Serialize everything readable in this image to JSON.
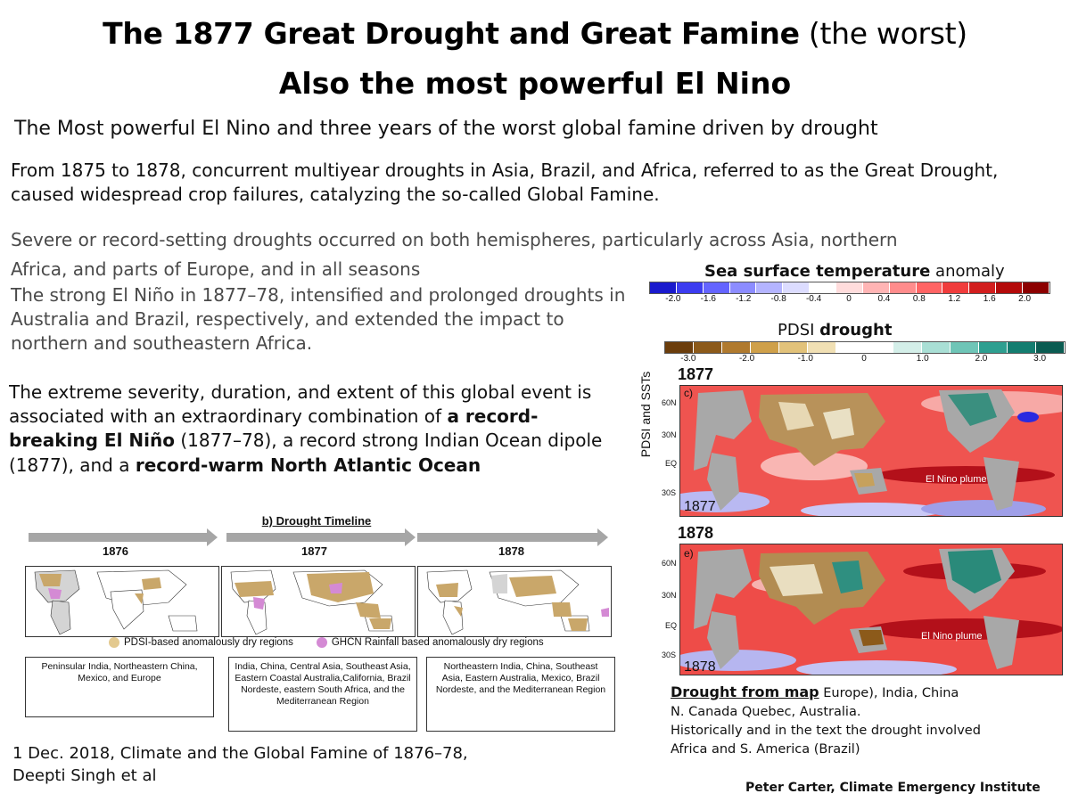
{
  "title": {
    "line1_bold": "The 1877  Great Drought and Great Famine",
    "line1_light": " (the worst)",
    "line2": "Also the most powerful El Nino"
  },
  "subtitle": "The Most powerful El Nino and three years of the worst global famine driven by drought",
  "para1": "From 1875 to 1878, concurrent multiyear droughts in Asia, Brazil, and Africa, referred to as the Great Drought, caused widespread crop failures, catalyzing the so-called Global Famine.",
  "para2_line1": "Severe or record-setting droughts occurred on both hemispheres, particularly across Asia, northern",
  "para2_line2": "Africa, and parts of Europe, and in all seasons",
  "para3": "The strong El Niño in 1877–78, intensified and prolonged droughts in Australia and Brazil, respectively, and extended the impact to northern and southeastern Africa.",
  "para4": {
    "t1": "The extreme severity, duration, and extent of this global event is associated with an extraordinary combination of ",
    "b1": "a record-breaking El Niño",
    "t2": " (1877–78), a record strong Indian Ocean dipole (1877), and a ",
    "b2": "record-warm North Atlantic Ocean"
  },
  "sst": {
    "title_bold": "Sea surface temperature",
    "title_rest": " anomaly",
    "ticks": [
      "-2.0",
      "-1.6",
      "-1.2",
      "-0.8",
      "-0.4",
      "0",
      "0.4",
      "0.8",
      "1.2",
      "1.6",
      "2.0"
    ],
    "colors": [
      "#1a1acd",
      "#3c3cf0",
      "#6464ff",
      "#8c8cff",
      "#b4b4ff",
      "#dcdcff",
      "#ffffff",
      "#ffdcdc",
      "#ffb4b4",
      "#ff8c8c",
      "#ff6464",
      "#f03c3c",
      "#d21e1e",
      "#b40a0a",
      "#8c0000"
    ]
  },
  "pdsi": {
    "title_plain": "PDSI ",
    "title_bold": "drought",
    "ticks": [
      "-3.0",
      "-2.0",
      "-1.0",
      "0",
      "1.0",
      "2.0",
      "3.0"
    ],
    "colors": [
      "#6b3d0c",
      "#8c5a1a",
      "#b07a2e",
      "#cfa04a",
      "#e2c27a",
      "#f1e0b4",
      "#ffffff",
      "#ffffff",
      "#d4efe9",
      "#a9dfd5",
      "#6fc5b7",
      "#2e9f90",
      "#147d70",
      "#0b5c52"
    ]
  },
  "map1877": {
    "header": "1877",
    "panel": "c)",
    "corner": "1877",
    "plume": "El Nino plume",
    "lats": [
      "60N",
      "30N",
      "EQ",
      "30S"
    ]
  },
  "map1878": {
    "header": "1878",
    "panel": "e)",
    "corner": "1878",
    "plume": "El Nino plume",
    "lats": [
      "60N",
      "30N",
      "EQ",
      "30S"
    ]
  },
  "side_label": "PDSI and SSTs",
  "timeline": {
    "title": "b) Drought Timeline",
    "years": [
      "1876",
      "1877",
      "1878"
    ],
    "legend_pdsi": "PDSI-based anomalously dry regions",
    "legend_ghcn": "GHCN Rainfall based anomalously dry regions",
    "boxes": [
      "Peninsular India, Northeastern China, Mexico, and Europe",
      "India, China, Central Asia, Southeast Asia, Eastern Coastal Australia,California, Brazil Nordeste, eastern South Africa, and the Mediterranean Region",
      "Northeastern India, China, Southeast Asia, Eastern Australia, Mexico, Brazil Nordeste, and the Mediterranean Region"
    ]
  },
  "drought_note": {
    "heading": "Drought from map",
    "line1_rest": " Europe), India,  China",
    "line2": "N. Canada Quebec, Australia.",
    "line3": "Historically and in the text  the drought involved",
    "line4": "Africa and S. America (Brazil)"
  },
  "citation": {
    "line1": "1 Dec. 2018, Climate and the Global Famine of 1876–78,",
    "line2": "Deepti Singh et al"
  },
  "credit": "Peter Carter, Climate Emergency Institute"
}
